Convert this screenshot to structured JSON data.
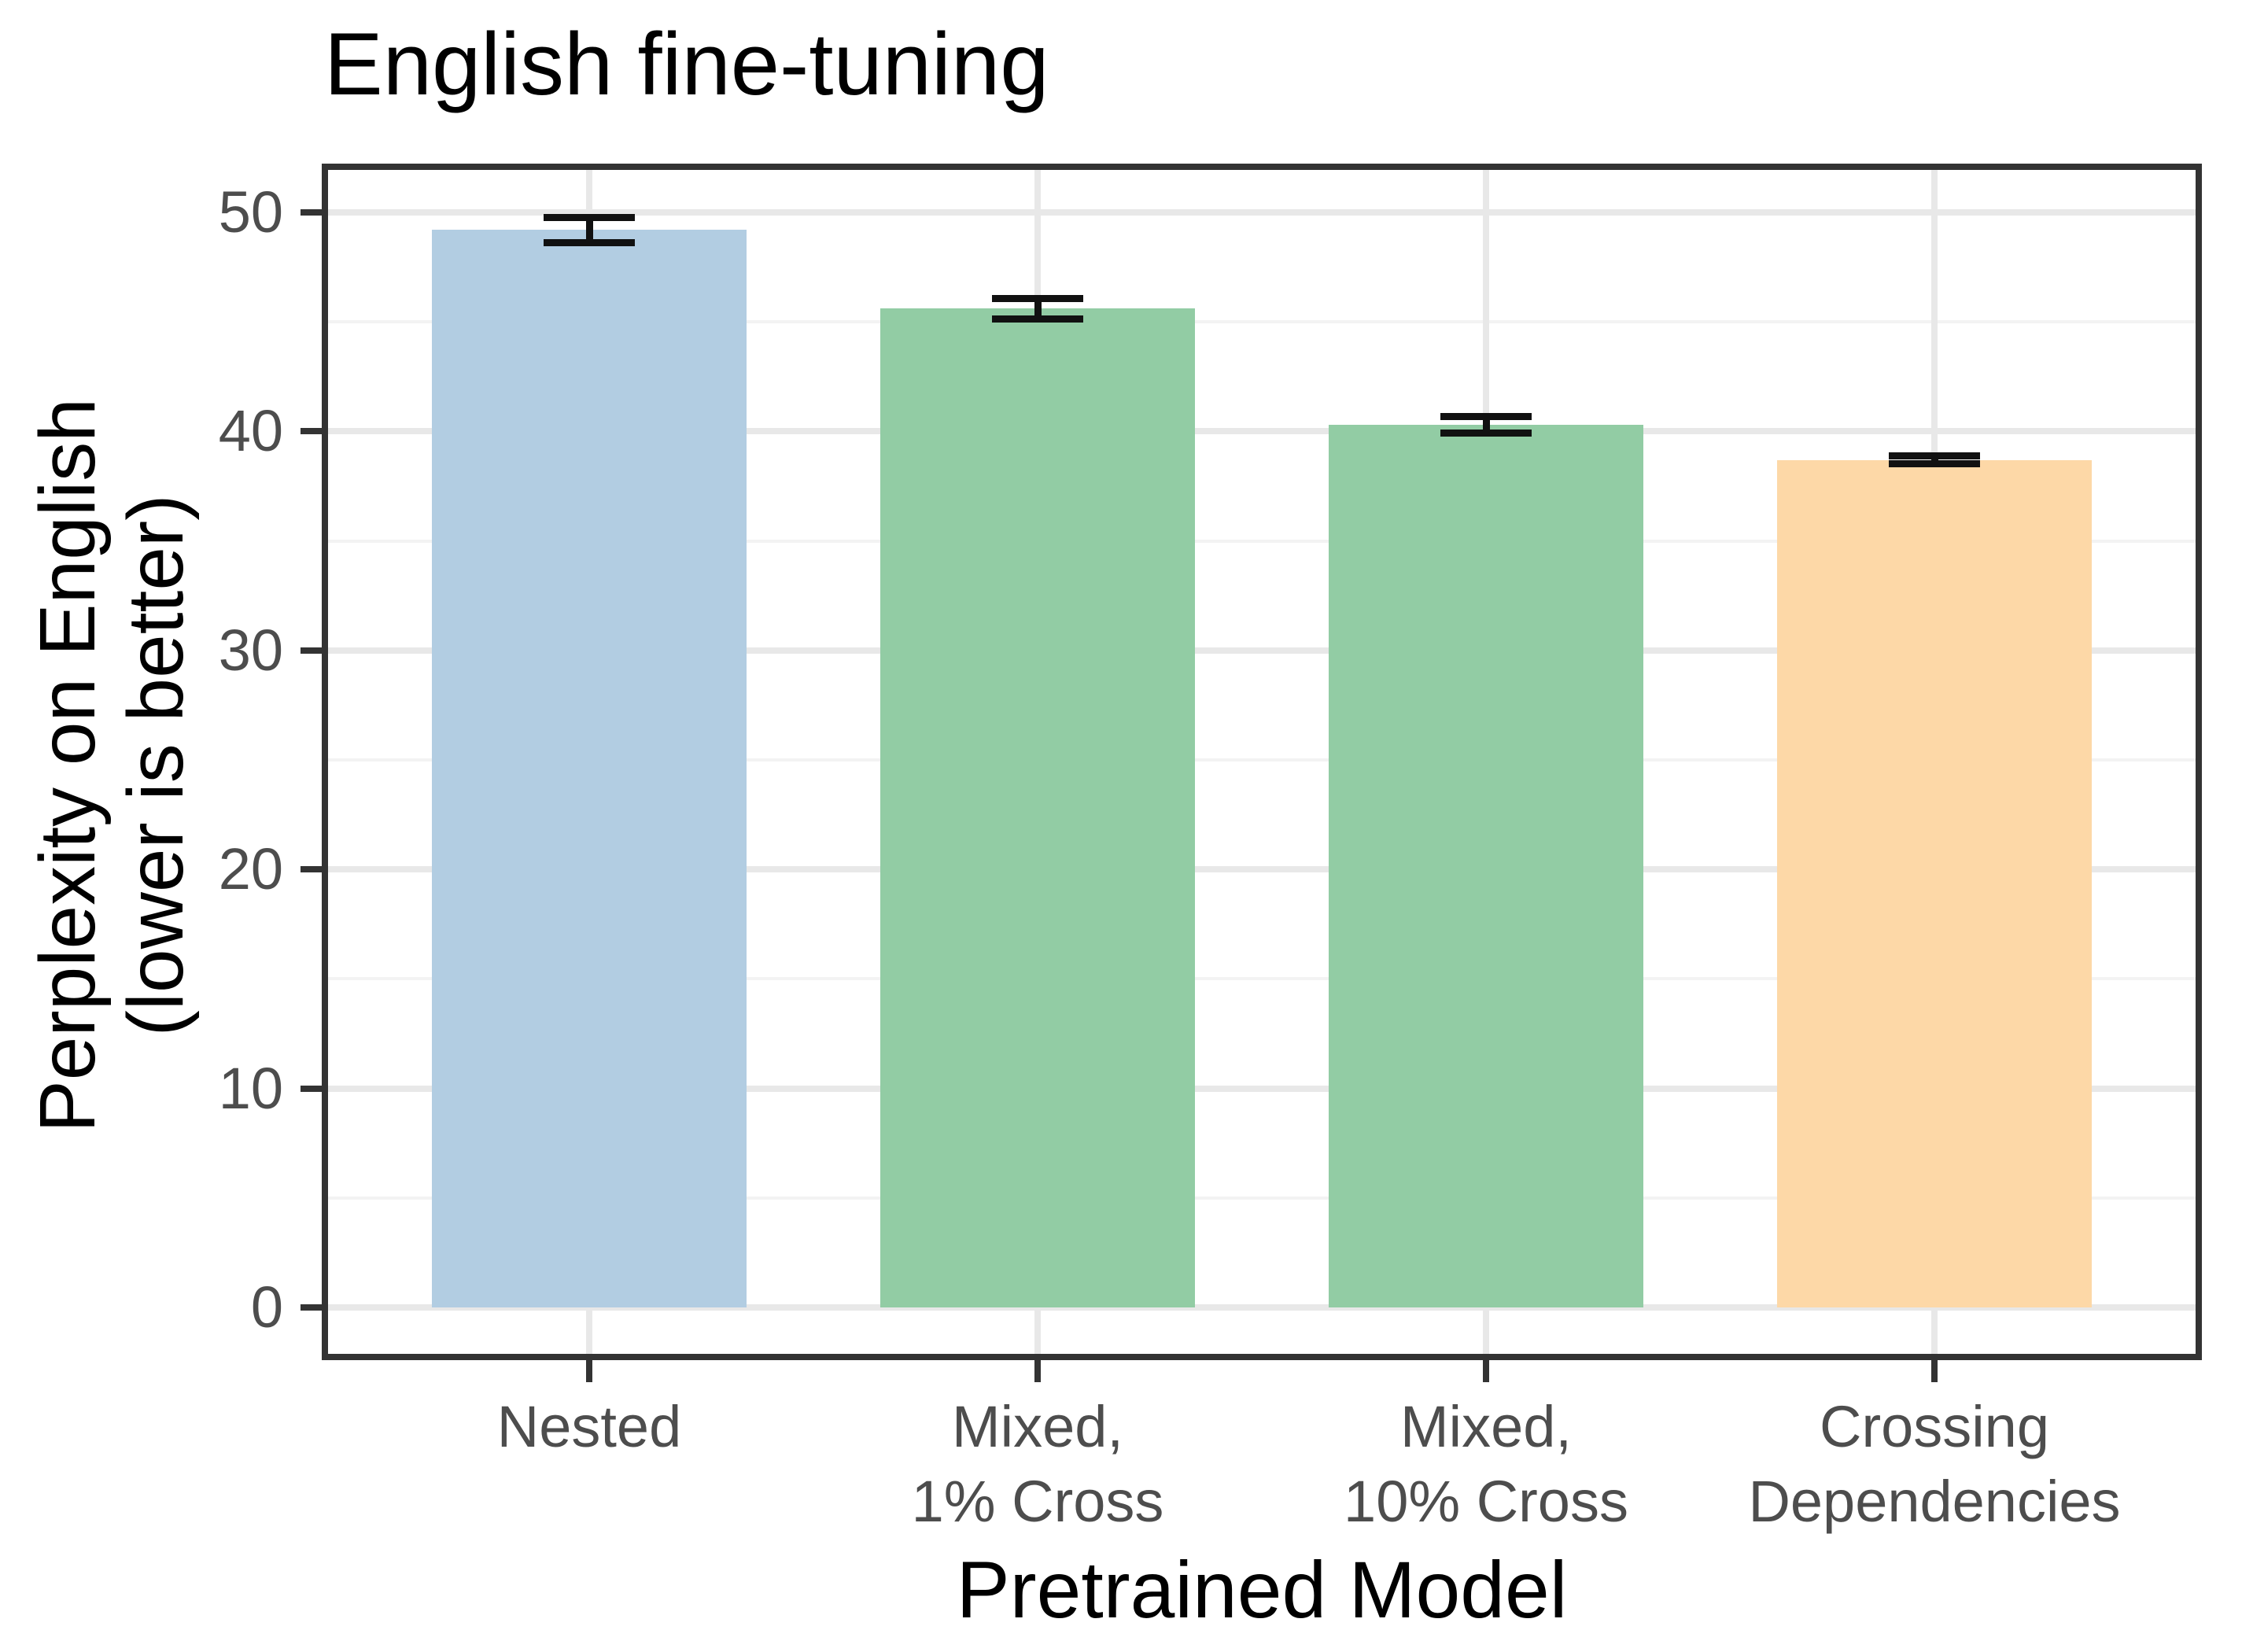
{
  "title": "English fine-tuning",
  "axes": {
    "x_title": "Pretrained Model",
    "y_title_line1": "Perplexity on English",
    "y_title_line2": "(lower is better)"
  },
  "colors": {
    "bar_blue": "#B2CDE2",
    "bar_green": "#92CCA4",
    "bar_orange": "#FDD8A7",
    "grid_major": "#E8E8E8",
    "grid_minor": "#F3F3F3",
    "panel_border": "#333333",
    "tick_label": "#4D4D4D",
    "error_bar": "#111111"
  },
  "chart_data": {
    "type": "bar",
    "title": "English fine-tuning",
    "xlabel": "Pretrained Model",
    "ylabel": "Perplexity on English\n(lower is better)",
    "categories": [
      "Nested",
      "Mixed,\n1% Cross",
      "Mixed,\n10% Cross",
      "Crossing\nDependencies"
    ],
    "values": [
      49.2,
      45.6,
      40.3,
      38.7
    ],
    "error_low": [
      48.6,
      45.1,
      39.9,
      38.5
    ],
    "error_high": [
      49.8,
      46.1,
      40.7,
      38.9
    ],
    "bar_colors": [
      "#B2CDE2",
      "#92CCA4",
      "#92CCA4",
      "#FDD8A7"
    ],
    "yticks": [
      0,
      10,
      20,
      30,
      40,
      50
    ],
    "ylim": [
      0,
      52.2
    ],
    "grid": true,
    "legend": false,
    "error_bars": true
  }
}
